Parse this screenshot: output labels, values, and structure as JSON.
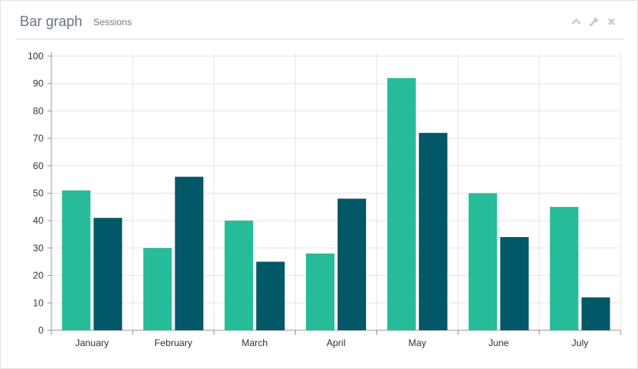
{
  "header": {
    "title": "Bar graph",
    "subtitle": "Sessions",
    "tools": [
      "chevron-up-icon",
      "wrench-icon",
      "close-icon"
    ]
  },
  "colors": {
    "series_a": "#26bb99",
    "series_b": "#025867",
    "grid": "#e6e6e6",
    "axis": "#999999",
    "icon": "#c8c8c8"
  },
  "chart_data": {
    "type": "bar",
    "categories": [
      "January",
      "February",
      "March",
      "April",
      "May",
      "June",
      "July"
    ],
    "series": [
      {
        "values": [
          51,
          30,
          40,
          28,
          92,
          50,
          45
        ]
      },
      {
        "values": [
          41,
          56,
          25,
          48,
          72,
          34,
          12
        ]
      }
    ],
    "ylim": [
      0,
      100
    ],
    "yticks": [
      0,
      10,
      20,
      30,
      40,
      50,
      60,
      70,
      80,
      90,
      100
    ],
    "grid": true,
    "title": "",
    "xlabel": "",
    "ylabel": ""
  }
}
